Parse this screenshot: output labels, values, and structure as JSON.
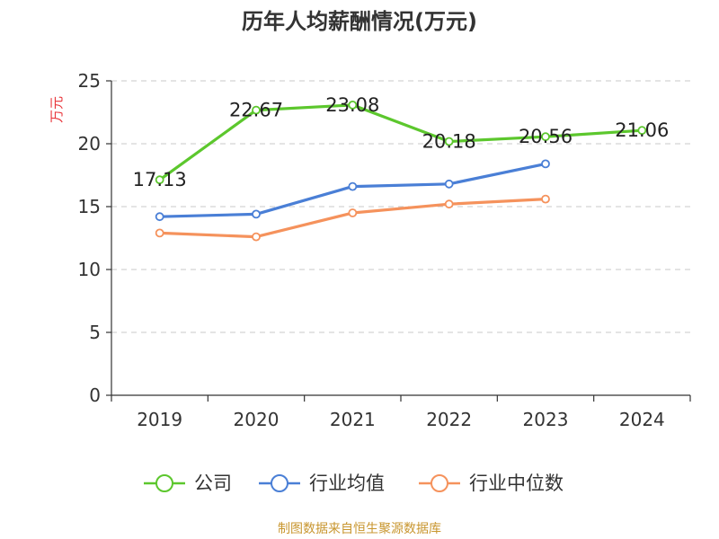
{
  "chart_data": {
    "type": "line",
    "title": "历年人均薪酬情况(万元)",
    "xlabel": "",
    "ylabel": "万元",
    "categories": [
      "2019",
      "2020",
      "2021",
      "2022",
      "2023",
      "2024"
    ],
    "ylim": [
      0,
      25
    ],
    "yticks": [
      0,
      5,
      10,
      15,
      20,
      25
    ],
    "grid": true,
    "legend_position": "bottom",
    "series": [
      {
        "name": "公司",
        "color": "#5cc72d",
        "values": [
          17.13,
          22.67,
          23.08,
          20.18,
          20.56,
          21.06
        ],
        "data_labels": [
          "17.13",
          "22.67",
          "23.08",
          "20.18",
          "20.56",
          "21.06"
        ]
      },
      {
        "name": "行业均值",
        "color": "#4a7fd6",
        "values": [
          14.2,
          14.4,
          16.6,
          16.8,
          18.4,
          null
        ]
      },
      {
        "name": "行业中位数",
        "color": "#f5925c",
        "values": [
          12.9,
          12.6,
          14.5,
          15.2,
          15.6,
          null
        ]
      }
    ],
    "source": "制图数据来自恒生聚源数据库"
  }
}
